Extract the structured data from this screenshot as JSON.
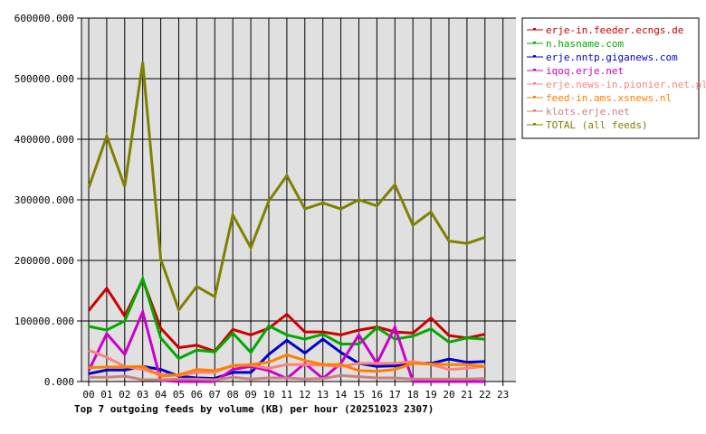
{
  "chart_data": {
    "type": "line",
    "title": "Top 7 outgoing feeds by volume (KB) per hour (20251023 2307)",
    "xlabel": "",
    "ylabel": "",
    "ylim": [
      0,
      600000
    ],
    "yticks": [
      "0.000",
      "100000.000",
      "200000.000",
      "300000.000",
      "400000.000",
      "500000.000",
      "600000.000"
    ],
    "categories": [
      "00",
      "01",
      "02",
      "03",
      "04",
      "05",
      "06",
      "07",
      "08",
      "09",
      "10",
      "11",
      "12",
      "13",
      "14",
      "15",
      "16",
      "17",
      "18",
      "19",
      "20",
      "21",
      "22",
      "23"
    ],
    "grid": true,
    "legend_position": "right",
    "series": [
      {
        "name": "erje-in.feeder.ecngs.de",
        "color": "#cc0000",
        "values": [
          117000,
          154000,
          108000,
          168000,
          88000,
          56000,
          60000,
          50000,
          86000,
          77000,
          88000,
          111000,
          82000,
          82000,
          77000,
          85000,
          90000,
          82000,
          80000,
          105000,
          76000,
          72000,
          78000
        ]
      },
      {
        "name": "n.hasname.com",
        "color": "#00aa00",
        "values": [
          91000,
          85000,
          100000,
          170000,
          72000,
          38000,
          52000,
          49000,
          80000,
          48000,
          92000,
          77000,
          70000,
          78000,
          62000,
          62000,
          89000,
          70000,
          75000,
          87000,
          65000,
          72000,
          70000
        ]
      },
      {
        "name": "erje.nntp.giganews.com",
        "color": "#0000cc",
        "values": [
          13000,
          19000,
          19000,
          25000,
          20000,
          9000,
          6000,
          5000,
          15000,
          15000,
          45000,
          68000,
          47000,
          70000,
          48000,
          30000,
          25000,
          26000,
          30000,
          30000,
          37000,
          32000,
          33000
        ]
      },
      {
        "name": "iqoq.erje.net",
        "color": "#cc00cc",
        "values": [
          18000,
          79000,
          45000,
          115000,
          2000,
          0,
          0,
          0,
          20000,
          25000,
          18000,
          5000,
          30000,
          5000,
          30000,
          77000,
          30000,
          90000,
          0,
          0,
          0,
          0,
          0
        ]
      },
      {
        "name": "erje.news-in.pionier.net.pl",
        "color": "#ff8080",
        "values": [
          52000,
          40000,
          25000,
          20000,
          12000,
          10000,
          15000,
          15000,
          27000,
          27000,
          22000,
          28000,
          28000,
          27000,
          25000,
          30000,
          30000,
          30000,
          33000,
          28000,
          20000,
          22000,
          25000
        ]
      },
      {
        "name": "feed-in.ams.xsnews.nl",
        "color": "#ff8000",
        "values": [
          23000,
          24000,
          24000,
          25000,
          9000,
          11000,
          20000,
          18000,
          26000,
          28000,
          32000,
          44000,
          35000,
          28000,
          28000,
          18000,
          17000,
          20000,
          30000,
          29000,
          28000,
          28000,
          25000
        ]
      },
      {
        "name": "klots.erje.net",
        "color": "#cc8080",
        "values": [
          7000,
          7000,
          9000,
          3000,
          3000,
          4000,
          4000,
          3000,
          7000,
          4000,
          6000,
          6000,
          4000,
          5000,
          10000,
          8000,
          6000,
          6000,
          4000,
          4000,
          4000,
          4000,
          5000
        ]
      },
      {
        "name": "TOTAL (all feeds)",
        "color": "#808000",
        "values": [
          320000,
          405000,
          322000,
          527000,
          202000,
          118000,
          157000,
          140000,
          275000,
          221000,
          298000,
          340000,
          285000,
          295000,
          285000,
          300000,
          290000,
          325000,
          258000,
          280000,
          232000,
          228000,
          238000
        ]
      }
    ]
  },
  "colors": {
    "plot_bg": "#e0e0e0",
    "grid": "#000000",
    "axis_text": "#000000"
  }
}
